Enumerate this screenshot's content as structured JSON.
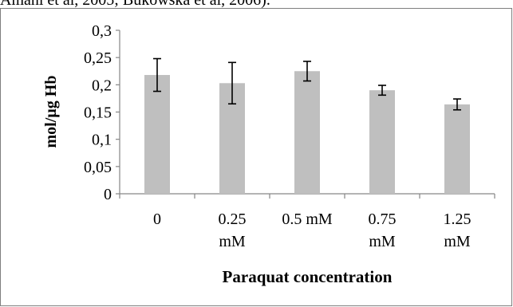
{
  "page_context": {
    "cut_off_text": "Amani et al, 2005; Bukowska et al, 2006)."
  },
  "chart_data": {
    "type": "bar",
    "title": "",
    "xlabel": "Paraquat concentration",
    "ylabel": "mol/µg Hb",
    "categories": [
      [
        "0"
      ],
      [
        "0.25",
        "mM"
      ],
      [
        "0.5 mM"
      ],
      [
        "0.75",
        "mM"
      ],
      [
        "1.25",
        "mM"
      ]
    ],
    "values": [
      0.218,
      0.203,
      0.225,
      0.19,
      0.164
    ],
    "error": [
      0.03,
      0.038,
      0.018,
      0.009,
      0.01
    ],
    "ylim": [
      0,
      0.3
    ],
    "yticks": [
      "0",
      "0,05",
      "0,1",
      "0,15",
      "0,2",
      "0,25",
      "0,3"
    ],
    "grid": false,
    "legend": "none",
    "colors": {
      "bar": "#bfbfbf",
      "axis": "#868686",
      "error_bar": "#000000"
    }
  }
}
